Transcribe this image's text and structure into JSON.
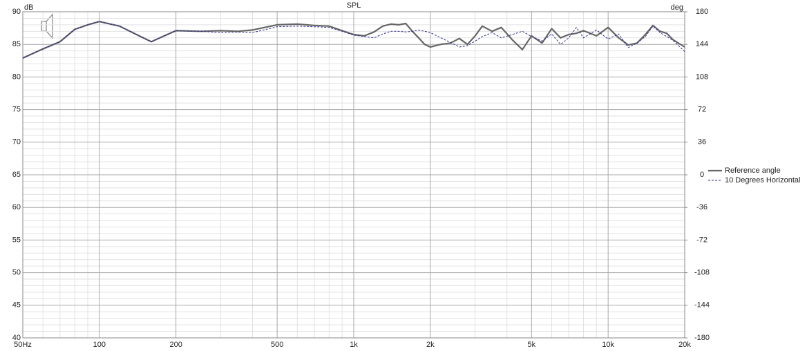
{
  "chart_data": {
    "type": "line",
    "title": "SPL",
    "ylabel": "dB",
    "y2label": "deg",
    "xscale": "log",
    "grid": true,
    "legend": "right",
    "x": [
      50,
      60,
      70,
      80,
      90,
      100,
      120,
      140,
      160,
      180,
      200,
      250,
      300,
      350,
      400,
      500,
      600,
      700,
      800,
      900,
      1000,
      1100,
      1200,
      1300,
      1400,
      1500,
      1600,
      1700,
      1800,
      1900,
      2000,
      2200,
      2400,
      2600,
      2800,
      3000,
      3200,
      3500,
      3800,
      4200,
      4600,
      5000,
      5500,
      6000,
      6500,
      7000,
      7500,
      8000,
      9000,
      10000,
      11000,
      12000,
      13000,
      14000,
      15000,
      16000,
      17000,
      18000,
      20000
    ],
    "series": [
      {
        "name": "Reference angle",
        "color": "#666666",
        "dashed": false,
        "values": [
          82.9,
          84.3,
          85.4,
          87.3,
          88.0,
          88.5,
          87.8,
          86.5,
          85.4,
          86.3,
          87.1,
          87.0,
          87.1,
          87.0,
          87.2,
          88.0,
          88.1,
          87.9,
          87.8,
          87.1,
          86.5,
          86.3,
          86.9,
          87.8,
          88.1,
          88.0,
          88.2,
          87.0,
          86.0,
          85.0,
          84.6,
          85.0,
          85.2,
          85.9,
          85.0,
          86.3,
          87.8,
          87.0,
          87.6,
          85.7,
          84.2,
          86.3,
          85.2,
          87.4,
          86.0,
          86.5,
          86.7,
          87.1,
          86.3,
          87.6,
          86.0,
          84.9,
          85.2,
          86.5,
          87.9,
          87.0,
          86.7,
          85.7,
          84.6
        ]
      },
      {
        "name": "10 Degrees Horizontal",
        "color": "#2e2e8c",
        "dashed": true,
        "values": [
          82.9,
          84.3,
          85.4,
          87.3,
          88.0,
          88.5,
          87.8,
          86.5,
          85.4,
          86.3,
          87.1,
          87.0,
          86.8,
          86.9,
          86.8,
          87.7,
          87.8,
          87.7,
          87.6,
          87.0,
          86.4,
          86.2,
          86.0,
          86.6,
          87.0,
          87.0,
          86.9,
          87.0,
          87.2,
          87.0,
          86.8,
          86.0,
          85.3,
          84.6,
          84.8,
          85.5,
          86.2,
          86.8,
          86.0,
          86.5,
          87.0,
          86.2,
          85.5,
          86.6,
          85.0,
          86.0,
          87.6,
          86.0,
          87.2,
          85.8,
          86.6,
          84.5,
          85.2,
          86.2,
          87.8,
          86.8,
          86.2,
          85.6,
          83.9
        ]
      }
    ],
    "xlim": [
      50,
      20000
    ],
    "xticks": [
      {
        "value": 50,
        "label": "50Hz"
      },
      100,
      200,
      500,
      {
        "value": 1000,
        "label": "1k"
      },
      {
        "value": 2000,
        "label": "2k"
      },
      {
        "value": 5000,
        "label": "5k"
      },
      {
        "value": 10000,
        "label": "10k"
      },
      {
        "value": 20000,
        "label": "20k"
      }
    ],
    "xminorticks": [
      60,
      70,
      80,
      90,
      300,
      400,
      600,
      700,
      800,
      900,
      3000,
      4000,
      6000,
      7000,
      8000,
      9000,
      30000
    ],
    "ylim": [
      40,
      90
    ],
    "yticks": [
      90,
      85,
      80,
      75,
      70,
      65,
      60,
      55,
      50,
      45,
      40
    ],
    "yminorticks": [
      41,
      42,
      43,
      44,
      46,
      47,
      48,
      49,
      51,
      52,
      53,
      54,
      56,
      57,
      58,
      59,
      61,
      62,
      63,
      64,
      66,
      67,
      68,
      69,
      71,
      72,
      73,
      74,
      76,
      77,
      78,
      79,
      81,
      82,
      83,
      84,
      86,
      87,
      88,
      89
    ],
    "y2lim": [
      -180,
      180
    ],
    "y2ticks": [
      180,
      144,
      108,
      72,
      36,
      0,
      -36,
      -72,
      -108,
      -144,
      -180
    ]
  }
}
